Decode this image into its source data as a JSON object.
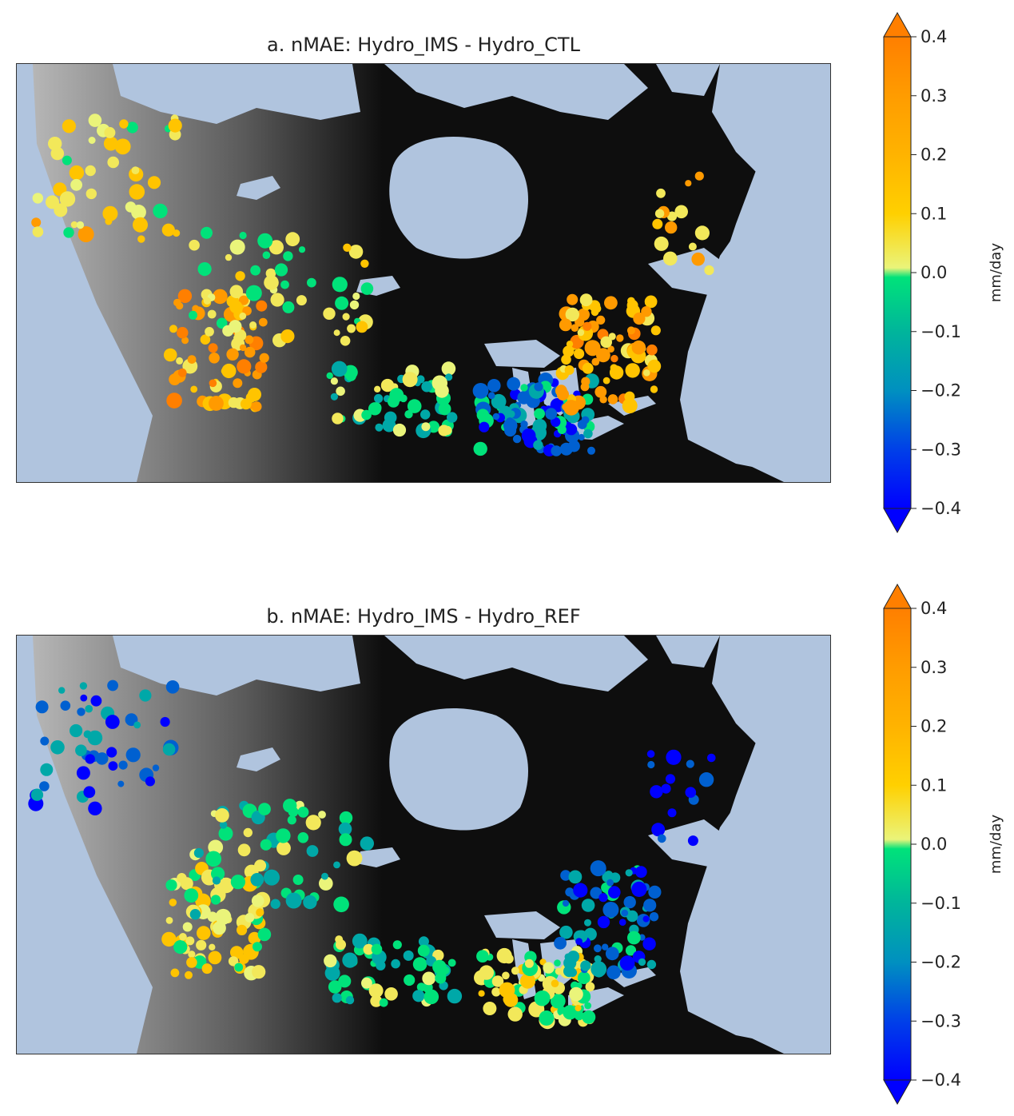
{
  "panels": [
    {
      "id": "a",
      "title": "a. nMAE: Hydro_IMS - Hydro_CTL",
      "stations": "ctl"
    },
    {
      "id": "b",
      "title": "b. nMAE: Hydro_IMS - Hydro_REF",
      "stations": "ref"
    }
  ],
  "colorbar": {
    "label": "mm/day",
    "ticks": [
      "0.4",
      "0.3",
      "0.2",
      "0.1",
      "0.0",
      "−0.1",
      "−0.2",
      "−0.3",
      "−0.4"
    ],
    "range": [
      -0.4,
      0.4
    ],
    "extend": "both",
    "colors": {
      "max_over": "#ff7f00",
      "positive_high": "#ff9a00",
      "positive_mid": "#ffc400",
      "positive_low": "#f2e85a",
      "zero": "#eaf47a",
      "negative_low": "#00e27a",
      "negative_mid": "#00a8a8",
      "negative_high": "#0060d0",
      "min_under": "#0000ff"
    }
  },
  "map_colors": {
    "water": "#b0c4de",
    "land_dark": "#0e0e0e",
    "land_mountain": "#bdbdbd"
  },
  "chart_data": {
    "type": "scatter",
    "description_units": "station nMAE difference (mm/day), approximate regional clusters",
    "series": [
      {
        "name": "a",
        "region_values": {
          "yukon_bc_north": 0.12,
          "alberta_bc_rockies": 0.25,
          "prairies": 0.05,
          "northern_prairies": -0.05,
          "ontario_great_lakes": -0.2,
          "quebec": 0.25,
          "maritimes_labrador": 0.2
        }
      },
      {
        "name": "b",
        "region_values": {
          "yukon_bc_north": -0.25,
          "alberta_bc_rockies": 0.1,
          "prairies": -0.05,
          "northern_prairies": -0.05,
          "ontario_great_lakes": 0.05,
          "quebec": -0.2,
          "maritimes_labrador": -0.35
        }
      }
    ]
  }
}
